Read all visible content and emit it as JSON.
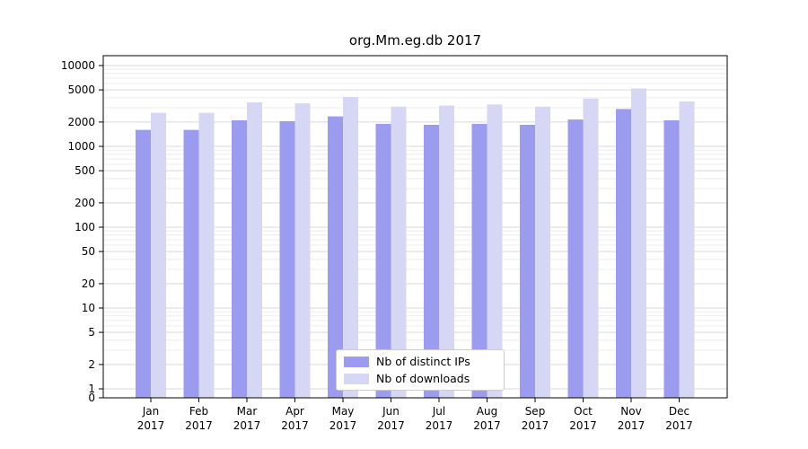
{
  "chart_data": {
    "type": "bar",
    "title": "org.Mm.eg.db 2017",
    "year": "2017",
    "categories": [
      "Jan",
      "Feb",
      "Mar",
      "Apr",
      "May",
      "Jun",
      "Jul",
      "Aug",
      "Sep",
      "Oct",
      "Nov",
      "Dec"
    ],
    "series": [
      {
        "name": "Nb of distinct IPs",
        "color": "#9b9bef",
        "values": [
          1600,
          1600,
          2100,
          2050,
          2350,
          1900,
          1850,
          1900,
          1850,
          2150,
          2900,
          2100
        ]
      },
      {
        "name": "Nb of downloads",
        "color": "#d6d6f5",
        "values": [
          2600,
          2600,
          3500,
          3400,
          4100,
          3100,
          3200,
          3300,
          3100,
          3900,
          5200,
          3600
        ]
      }
    ],
    "y_ticks": [
      10000,
      5000,
      2000,
      1000,
      500,
      200,
      100,
      50,
      20,
      10,
      5,
      2,
      1,
      0
    ],
    "y_scale": "symlog",
    "ylim": [
      0,
      10000
    ],
    "grid": "on",
    "legend_position": "lower center",
    "colors": {
      "grid_major": "#d9d9d9",
      "grid_minor": "#ececec",
      "axis": "#000000",
      "text": "#000000"
    }
  }
}
